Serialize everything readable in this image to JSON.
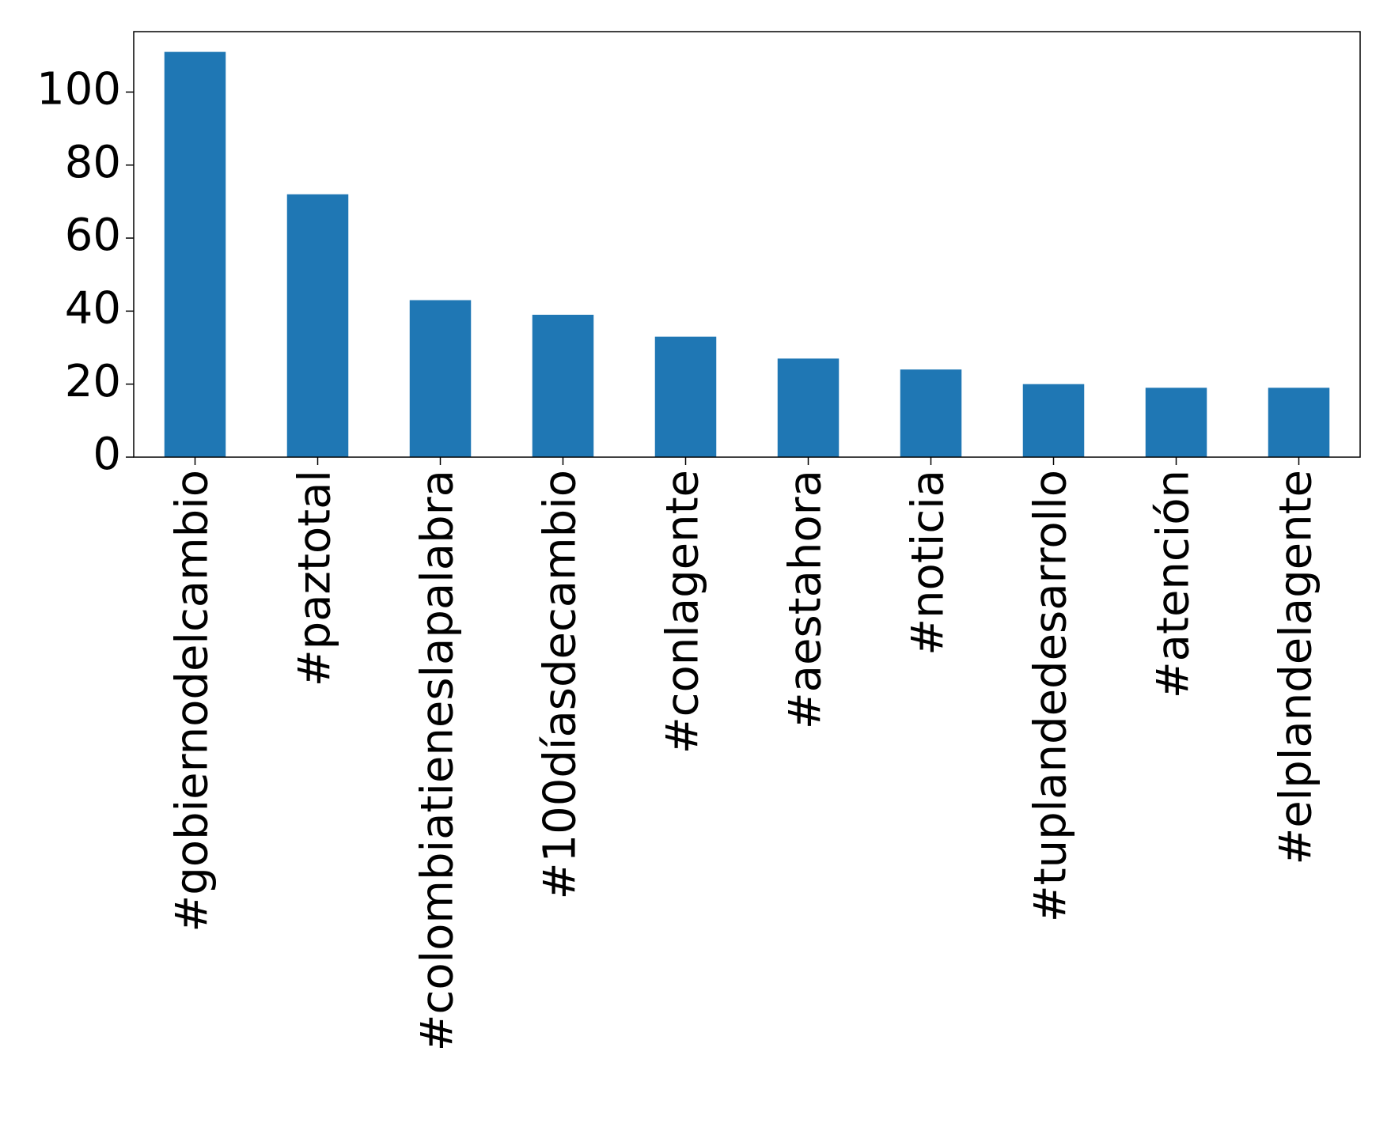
{
  "chart_data": {
    "type": "bar",
    "categories": [
      "#gobiernodelcambio",
      "#paztotal",
      "#colombiatieneslapalabra",
      "#100díasdecambio",
      "#conlagente",
      "#aestahora",
      "#noticia",
      "#tuplandedesarrollo",
      "#atención",
      "#elplandelagente"
    ],
    "values": [
      111,
      72,
      43,
      39,
      33,
      27,
      24,
      20,
      19,
      19
    ],
    "color": "#1f77b4",
    "ylim": [
      0,
      116.55
    ],
    "yticks": [
      0,
      20,
      40,
      60,
      80,
      100
    ],
    "grid": false
  }
}
